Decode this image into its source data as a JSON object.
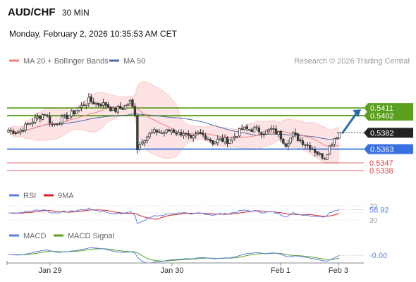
{
  "header": {
    "pair": "AUD/CHF",
    "timeframe": "30 MIN",
    "datetime": "Monday, February 2, 2026 10:35:53 AM CET"
  },
  "legend": {
    "ma20": "MA 20 + Bollinger Bands",
    "ma50": "MA 50",
    "credit": "Research © 2026 Trading Central",
    "rsi": "RSI",
    "rsi_ma": "9MA",
    "macd": "MACD",
    "macd_signal": "MACD Signal"
  },
  "colors": {
    "candle": "#3a3a3a",
    "ma20": "#f08080",
    "bollinger_fill": "#fde3e3",
    "ma50": "#4a6aa8",
    "resistance": "#5aa01e",
    "pivot": "#3a6fe0",
    "support": "#e06b6b",
    "current": "#222222",
    "arrow": "#2e6ab0",
    "rsi": "#5a7fe0",
    "rsi_ma": "#d42020",
    "macd": "#5a7fe0",
    "macd_signal": "#5aa01e"
  },
  "chart_data": {
    "type": "candlestick",
    "x_ticks": [
      "Jan 29",
      "Jan 30",
      "Feb 1",
      "Feb 3"
    ],
    "y_range": [
      0.5333,
      0.543
    ],
    "levels": [
      {
        "label": "0.5411",
        "value": 0.5411,
        "kind": "resistance"
      },
      {
        "label": "0.5402",
        "value": 0.5402,
        "kind": "resistance"
      },
      {
        "label": "0.5382",
        "value": 0.5382,
        "kind": "current"
      },
      {
        "label": "0.5363",
        "value": 0.5363,
        "kind": "pivot"
      },
      {
        "label": "0.5347",
        "value": 0.5347,
        "kind": "support"
      },
      {
        "label": "0.5338",
        "value": 0.5338,
        "kind": "support"
      }
    ],
    "close_anchors": [
      [
        0,
        0.5385
      ],
      [
        4,
        0.5383
      ],
      [
        10,
        0.5396
      ],
      [
        15,
        0.5405
      ],
      [
        18,
        0.5391
      ],
      [
        22,
        0.5398
      ],
      [
        26,
        0.5404
      ],
      [
        30,
        0.5413
      ],
      [
        33,
        0.542
      ],
      [
        36,
        0.5416
      ],
      [
        40,
        0.5415
      ],
      [
        43,
        0.5408
      ],
      [
        47,
        0.5411
      ],
      [
        50,
        0.5418
      ],
      [
        52,
        0.5405
      ],
      [
        53,
        0.5364
      ],
      [
        55,
        0.5374
      ],
      [
        58,
        0.538
      ],
      [
        61,
        0.5384
      ],
      [
        63,
        0.5382
      ],
      [
        67,
        0.5385
      ],
      [
        70,
        0.5381
      ],
      [
        72,
        0.5383
      ],
      [
        75,
        0.5373
      ],
      [
        78,
        0.5381
      ],
      [
        81,
        0.5378
      ],
      [
        84,
        0.5371
      ],
      [
        87,
        0.5374
      ],
      [
        90,
        0.5373
      ],
      [
        93,
        0.5378
      ],
      [
        96,
        0.5386
      ],
      [
        99,
        0.5386
      ],
      [
        102,
        0.5386
      ],
      [
        105,
        0.5382
      ],
      [
        108,
        0.5386
      ],
      [
        111,
        0.5381
      ],
      [
        114,
        0.5369
      ],
      [
        117,
        0.538
      ],
      [
        120,
        0.5373
      ],
      [
        123,
        0.5368
      ],
      [
        126,
        0.5361
      ],
      [
        128,
        0.5356
      ],
      [
        130,
        0.5354
      ],
      [
        132,
        0.5366
      ],
      [
        134,
        0.5376
      ],
      [
        136,
        0.5382
      ]
    ],
    "rsi": {
      "last": 58.92,
      "levels": [
        70,
        30
      ],
      "tick_labels": [
        "70",
        "30"
      ]
    },
    "macd": {
      "last": -0.0,
      "label": "-0.00"
    },
    "candle_count": 137
  }
}
